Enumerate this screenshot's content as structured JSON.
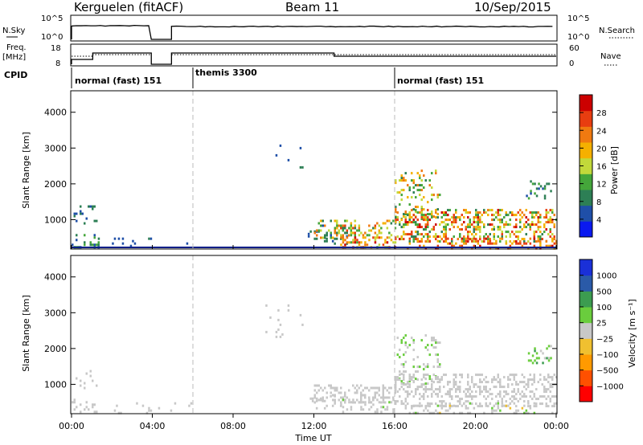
{
  "header": {
    "site": "Kerguelen (fitACF)",
    "beam": "Beam 11",
    "date": "10/Sep/2015"
  },
  "strips": {
    "nsky_label": "N.Sky",
    "nsky_ticks": [
      "10^5",
      "10^0"
    ],
    "nsearch_label": "N.Search",
    "nsearch_ticks": [
      "10^5",
      "10^0"
    ],
    "freq_label": "Freq.",
    "freq_unit": "[MHz]",
    "freq_ticks": [
      "18",
      "8"
    ],
    "nave_label": "Nave",
    "nave_ticks": [
      "60",
      "0"
    ],
    "cpid_label": "CPID",
    "cpid_segments": [
      {
        "label": "normal (fast) 151",
        "start_hr": 0,
        "end_hr": 6
      },
      {
        "label": "themis 3300",
        "start_hr": 6,
        "end_hr": 16
      },
      {
        "label": "normal (fast) 151",
        "start_hr": 16,
        "end_hr": 24
      }
    ],
    "data_gap_hr": [
      3.95,
      4.95
    ]
  },
  "x_axis": {
    "label": "Time UT",
    "ticks": [
      "00:00",
      "04:00",
      "08:00",
      "12:00",
      "16:00",
      "20:00",
      "00:00"
    ],
    "tick_hours": [
      0,
      4,
      8,
      12,
      16,
      20,
      24
    ]
  },
  "chart_data": [
    {
      "type": "heatmap",
      "panel": "power",
      "ylabel": "Slant Range [km]",
      "yticks": [
        "4000",
        "3000",
        "2000",
        "1000"
      ],
      "ytick_values": [
        4000,
        3000,
        2000,
        1000
      ],
      "ylim": [
        180,
        4600
      ],
      "xlim": [
        0,
        24
      ],
      "colorbar": {
        "label": "Power [dB]",
        "ticks": [
          "28",
          "24",
          "20",
          "16",
          "12",
          "8",
          "4"
        ],
        "tick_values": [
          28,
          24,
          20,
          16,
          12,
          8,
          4
        ],
        "range": [
          0,
          30
        ],
        "colors": [
          "#0a19f0",
          "#1f4fa8",
          "#2d7f55",
          "#44a63a",
          "#c2d93a",
          "#f5b000",
          "#f07a10",
          "#e83d10",
          "#cc0000"
        ]
      },
      "scatter_regions": [
        {
          "x": [
            0.0,
            1.3
          ],
          "y": [
            200,
            600
          ],
          "v": [
            4,
            14
          ],
          "density": 0.55
        },
        {
          "x": [
            0.1,
            1.2
          ],
          "y": [
            900,
            1400
          ],
          "v": [
            4,
            10
          ],
          "density": 0.35
        },
        {
          "x": [
            1.3,
            6.0
          ],
          "y": [
            200,
            500
          ],
          "v": [
            4,
            8
          ],
          "density": 0.08
        },
        {
          "x": [
            9.6,
            11.4
          ],
          "y": [
            2300,
            3300
          ],
          "v": [
            4,
            8
          ],
          "density": 0.06
        },
        {
          "x": [
            11.6,
            13.6
          ],
          "y": [
            300,
            700
          ],
          "v": [
            4,
            10
          ],
          "density": 0.25
        },
        {
          "x": [
            12.0,
            14.0
          ],
          "y": [
            500,
            1000
          ],
          "v": [
            6,
            24
          ],
          "density": 0.7
        },
        {
          "x": [
            13.0,
            16.0
          ],
          "y": [
            600,
            1000
          ],
          "v": [
            8,
            24
          ],
          "density": 0.6
        },
        {
          "x": [
            13.3,
            16.0
          ],
          "y": [
            200,
            600
          ],
          "v": [
            12,
            28
          ],
          "density": 0.75
        },
        {
          "x": [
            16.0,
            18.2
          ],
          "y": [
            1000,
            2400
          ],
          "v": [
            8,
            22
          ],
          "density": 0.35
        },
        {
          "x": [
            16.0,
            24.0
          ],
          "y": [
            400,
            1300
          ],
          "v": [
            8,
            28
          ],
          "density": 0.7
        },
        {
          "x": [
            16.5,
            24.0
          ],
          "y": [
            200,
            500
          ],
          "v": [
            16,
            28
          ],
          "density": 0.55
        },
        {
          "x": [
            22.5,
            23.7
          ],
          "y": [
            1600,
            2100
          ],
          "v": [
            4,
            12
          ],
          "density": 0.3
        }
      ]
    },
    {
      "type": "heatmap",
      "panel": "velocity",
      "ylabel": "Slant Range [km]",
      "yticks": [
        "4000",
        "3000",
        "2000",
        "1000"
      ],
      "ytick_values": [
        4000,
        3000,
        2000,
        1000
      ],
      "ylim": [
        180,
        4600
      ],
      "xlim": [
        0,
        24
      ],
      "colorbar": {
        "label": "Velocity  [m s⁻¹]",
        "ticks": [
          "1000",
          "500",
          "100",
          "25",
          "−25",
          "−100",
          "−500",
          "−1000"
        ],
        "tick_values": [
          1000,
          500,
          100,
          25,
          -25,
          -100,
          -500,
          -1000
        ],
        "range": [
          -1200,
          1200
        ],
        "colors": [
          "#ff0000",
          "#ff5000",
          "#ff9a00",
          "#f0c030",
          "#c8c8c8",
          "#6acd3d",
          "#3c9c50",
          "#2a5aa8",
          "#1a30d8"
        ]
      },
      "scatter_regions": [
        {
          "x": [
            0.0,
            1.3
          ],
          "y": [
            200,
            600
          ],
          "v": [
            -60,
            60
          ],
          "density": 0.45
        },
        {
          "x": [
            0.1,
            1.2
          ],
          "y": [
            900,
            1400
          ],
          "v": [
            -60,
            20
          ],
          "density": 0.3
        },
        {
          "x": [
            1.3,
            6.0
          ],
          "y": [
            200,
            500
          ],
          "v": [
            -90,
            0
          ],
          "density": 0.07
        },
        {
          "x": [
            9.6,
            11.4
          ],
          "y": [
            2300,
            3300
          ],
          "v": [
            -20,
            20
          ],
          "density": 0.06
        },
        {
          "x": [
            11.6,
            13.6
          ],
          "y": [
            300,
            700
          ],
          "v": [
            -60,
            60
          ],
          "density": 0.25
        },
        {
          "x": [
            12.0,
            16.0
          ],
          "y": [
            500,
            1000
          ],
          "v": [
            -20,
            20
          ],
          "density": 0.6
        },
        {
          "x": [
            13.3,
            16.0
          ],
          "y": [
            200,
            600
          ],
          "v": [
            -80,
            150
          ],
          "density": 0.55
        },
        {
          "x": [
            16.0,
            18.2
          ],
          "y": [
            1000,
            2400
          ],
          "v": [
            20,
            200
          ],
          "density": 0.35
        },
        {
          "x": [
            16.0,
            24.0
          ],
          "y": [
            400,
            1300
          ],
          "v": [
            -30,
            30
          ],
          "density": 0.65
        },
        {
          "x": [
            16.5,
            24.0
          ],
          "y": [
            200,
            500
          ],
          "v": [
            -150,
            200
          ],
          "density": 0.5
        },
        {
          "x": [
            22.5,
            23.7
          ],
          "y": [
            1600,
            2100
          ],
          "v": [
            100,
            500
          ],
          "density": 0.3
        }
      ]
    }
  ]
}
